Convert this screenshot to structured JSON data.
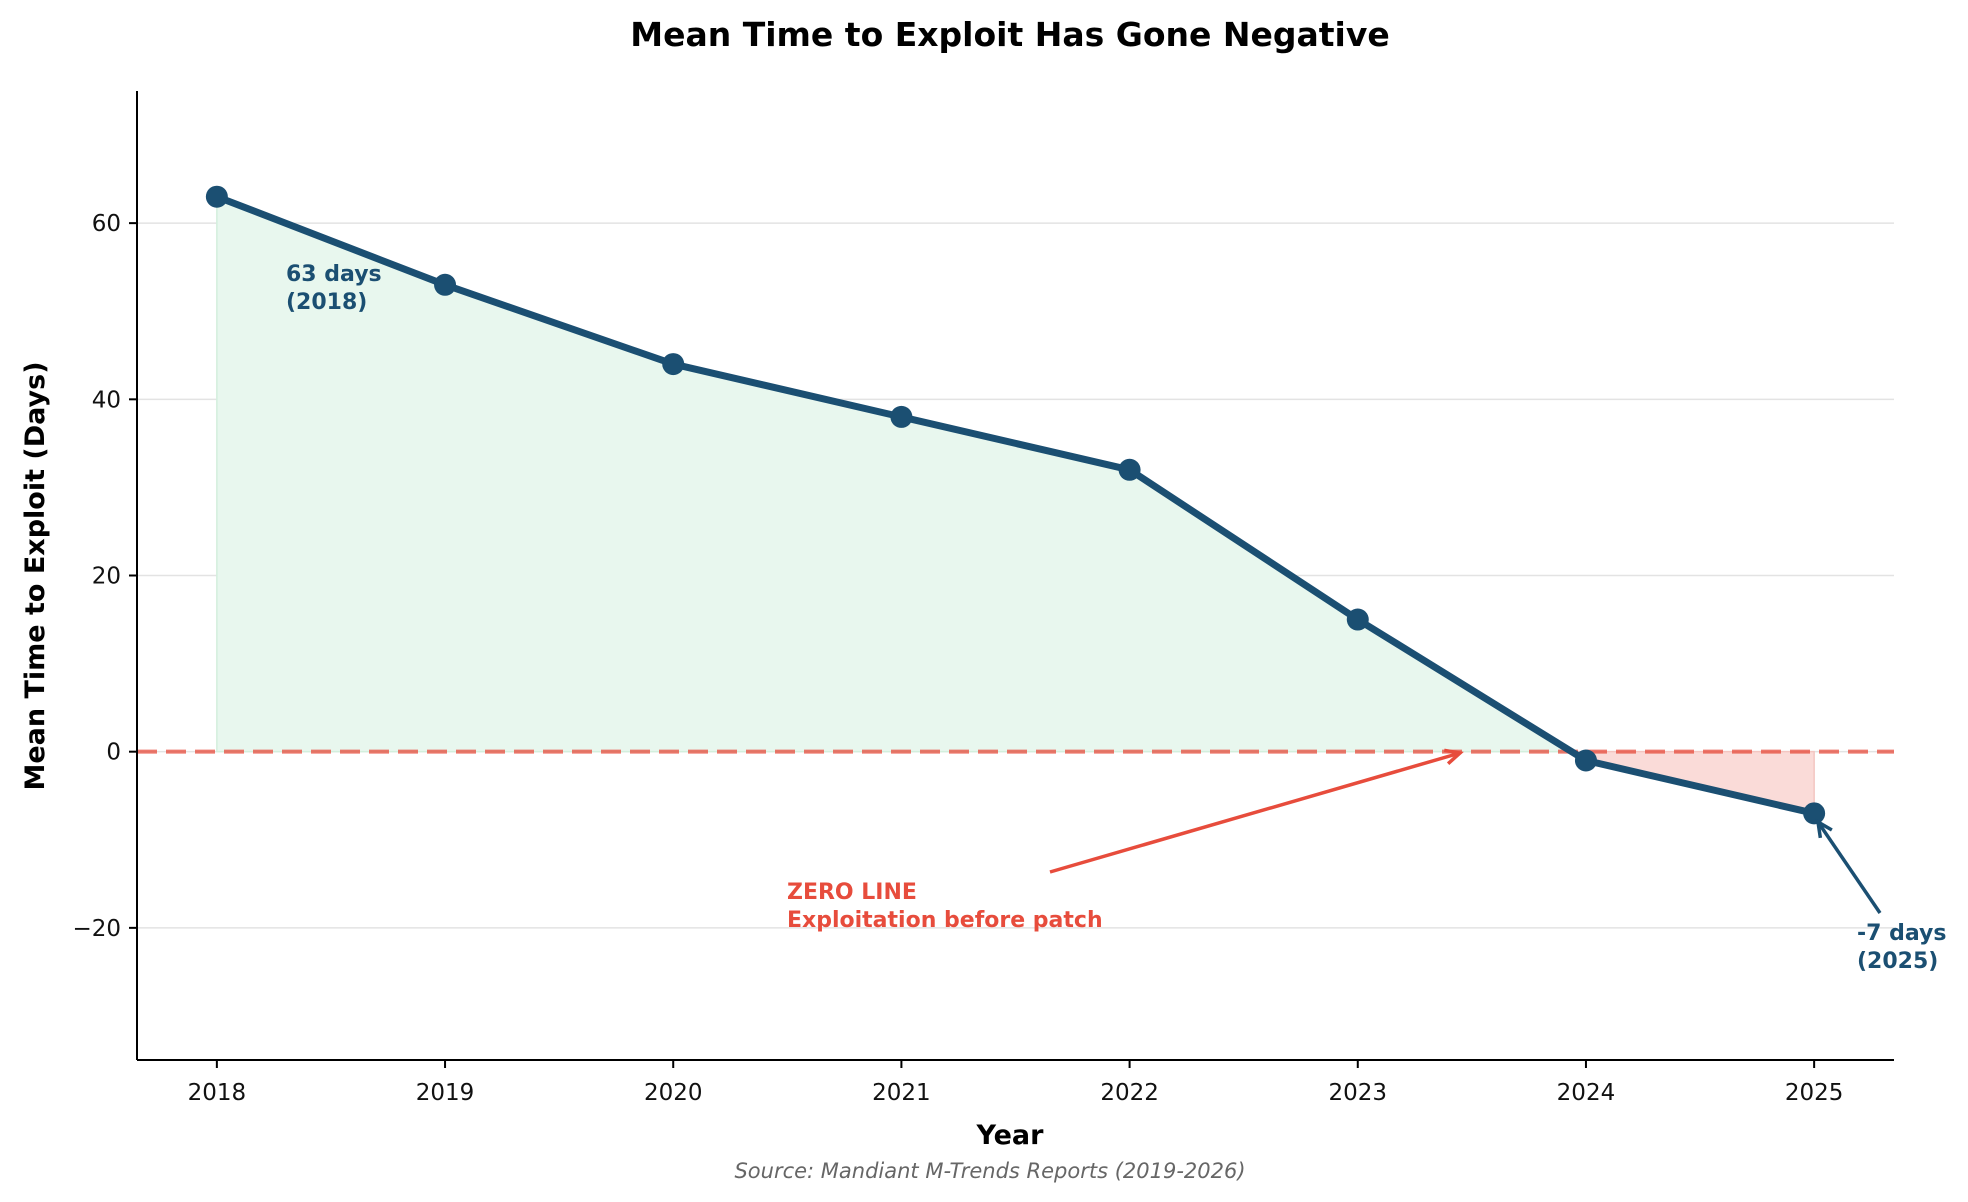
{
  "chart_data": {
    "type": "line",
    "title": "Mean Time to Exploit Has Gone Negative",
    "xlabel": "Year",
    "ylabel": "Mean Time to Exploit (Days)",
    "source": "Source: Mandiant M-Trends Reports (2019-2026)",
    "x": [
      2018,
      2019,
      2020,
      2021,
      2022,
      2023,
      2024,
      2025
    ],
    "xtick_labels": [
      "2018",
      "2019",
      "2020",
      "2021",
      "2022",
      "2023",
      "2024",
      "2025"
    ],
    "series": [
      {
        "values": [
          63,
          53,
          44,
          38,
          32,
          15,
          -1,
          -7
        ]
      }
    ],
    "ylim": [
      -35,
      75
    ],
    "xlim": [
      2017.65,
      2025.35
    ],
    "yticks": [
      -20,
      0,
      20,
      40,
      60
    ],
    "ytick_labels": [
      "−20",
      "0",
      "20",
      "40",
      "60"
    ],
    "grid": "horizontal",
    "zero_line": {
      "y": 0,
      "style": "dashed",
      "color": "#e74c3c"
    },
    "annotations": [
      {
        "lines": [
          "63 days",
          "(2018)"
        ]
      },
      {
        "lines": [
          "ZERO LINE",
          "Exploitation before patch"
        ]
      },
      {
        "lines": [
          "-7 days",
          "(2025)"
        ]
      }
    ],
    "colors": {
      "line": "#1b4f72",
      "positive_fill": "#e8f7ee",
      "negative_fill": "#fadbd8",
      "zero_line": "#e74c3c",
      "grid": "#e3e3e3"
    }
  }
}
